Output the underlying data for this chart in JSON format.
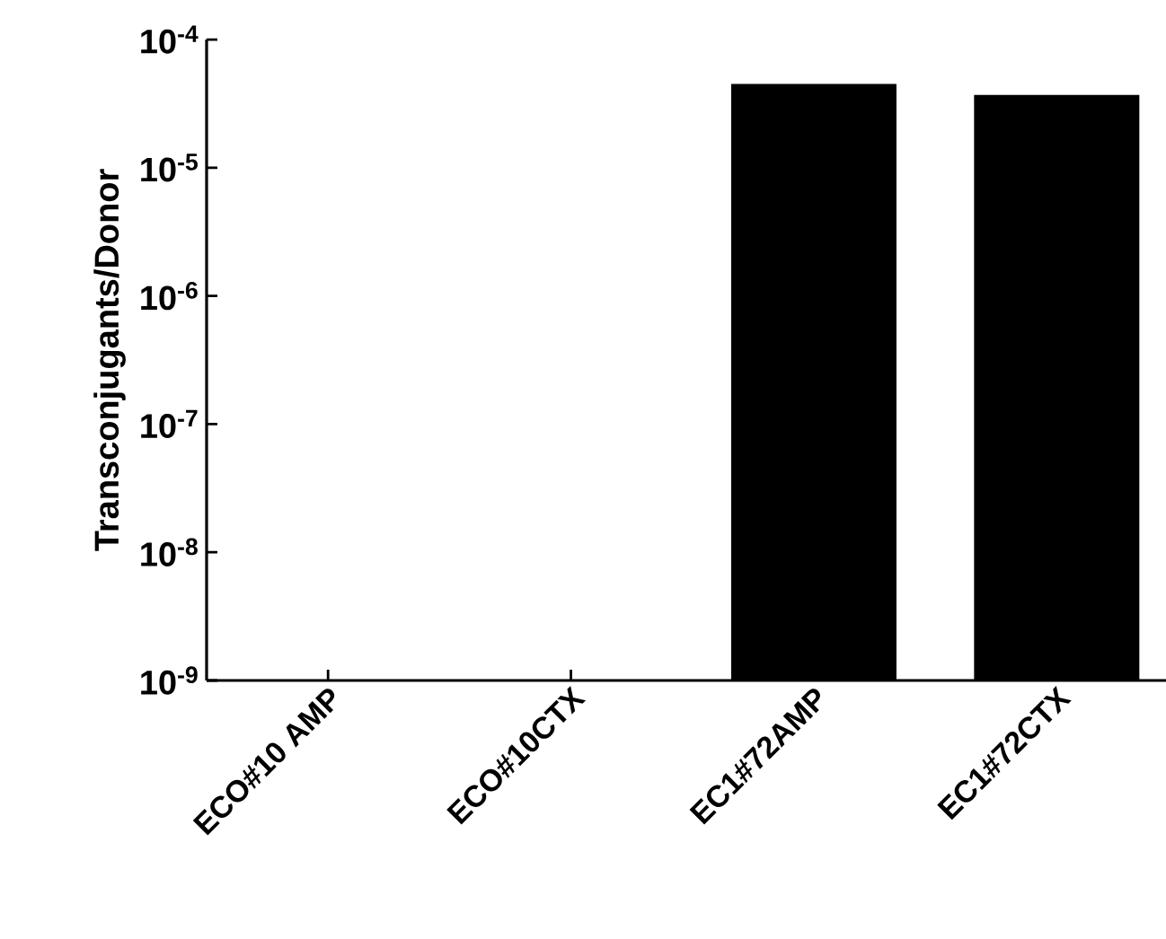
{
  "chart_data": {
    "type": "bar",
    "ylabel": "Transconjugants/Donor",
    "categories": [
      "ECO#10 AMP",
      "ECO#10CTX",
      "EC1#72AMP",
      "EC1#72CTX"
    ],
    "values": [
      null,
      null,
      4.5e-05,
      3.7e-05
    ],
    "color": "#000000",
    "log": true,
    "ylim": [
      1e-09,
      0.0001
    ],
    "yticks": [
      {
        "value": 1e-09,
        "label": "10$^{-9}$"
      },
      {
        "value": 1e-08,
        "label": "10$^{-8}$"
      },
      {
        "value": 1e-07,
        "label": "10$^{-7}$"
      },
      {
        "value": 1e-06,
        "label": "10$^{-6}$"
      },
      {
        "value": 1e-05,
        "label": "10$^{-5}$"
      },
      {
        "value": 0.0001,
        "label": "10$^{-4}$"
      }
    ],
    "marker": "none"
  }
}
